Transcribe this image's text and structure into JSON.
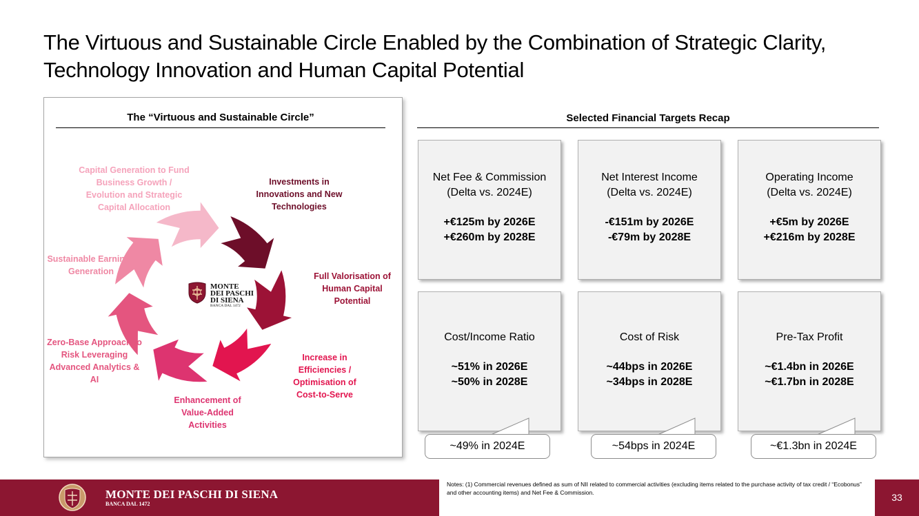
{
  "title": {
    "line1": "The Virtuous and Sustainable Circle Enabled by the Combination of Strategic Clarity,",
    "line2": "Technology Innovation and Human Capital Potential"
  },
  "circle": {
    "heading": "The “Virtuous and Sustainable Circle”",
    "logo": {
      "line1": "MONTE",
      "line2": "DEI PASCHI",
      "line3": "DI SIENA",
      "sub": "BANCA DAL 1472"
    },
    "segments": [
      {
        "label": "Investments in Innovations and New Technologies",
        "color": "#6d0e29"
      },
      {
        "label": "Full Valorisation of Human Capital Potential",
        "color": "#9c1236"
      },
      {
        "label": "Increase in Efficiencies / Optimisation of Cost-to-Serve",
        "color": "#e2154f"
      },
      {
        "label": "Enhancement of Value-Added Activities",
        "color": "#dd3470"
      },
      {
        "label": "Zero-Base Approach to Risk Leveraging Advanced Analytics & AI",
        "color": "#e4557f"
      },
      {
        "label": "Sustainable Earnings Generation",
        "color": "#ef88a4"
      },
      {
        "label": "Capital Generation to Fund Business Growth / Evolution and Strategic Capital Allocation",
        "color": "#f5b8c9"
      }
    ]
  },
  "targets": {
    "heading": "Selected Financial Targets Recap",
    "boxes": [
      {
        "name": "Net Fee & Commission\n(Delta vs. 2024E)",
        "value1": "+€125m by 2026E",
        "value2": "+€260m by 2028E"
      },
      {
        "name": "Net Interest Income\n(Delta vs. 2024E)",
        "value1": "-€151m by 2026E",
        "value2": "-€79m by 2028E"
      },
      {
        "name": "Operating Income\n(Delta vs. 2024E)",
        "value1": "+€5m by 2026E",
        "value2": "+€216m by 2028E"
      },
      {
        "name": "Cost/Income Ratio",
        "value1": "~51% in 2026E",
        "value2": "~50% in 2028E",
        "callout": "~49% in 2024E"
      },
      {
        "name": "Cost of Risk",
        "value1": "~44bps in 2026E",
        "value2": "~34bps in 2028E",
        "callout": "~54bps in 2024E"
      },
      {
        "name": "Pre-Tax Profit",
        "value1": "~€1.4bn in 2026E",
        "value2": "~€1.7bn in 2028E",
        "callout": "~€1.3bn in 2024E"
      }
    ]
  },
  "footer": {
    "brand": "MONTE DEI PASCHI DI SIENA",
    "brand_sub": "BANCA DAL 1472",
    "notes": "Notes: (1) Commercial revenues defined as sum of NII related to commercial activities (excluding items related to the purchase activity of tax credit / “Ecobonus” and other accounting items) and Net Fee & Commission.",
    "page_number": "33",
    "bar_color": "#8c1631"
  }
}
